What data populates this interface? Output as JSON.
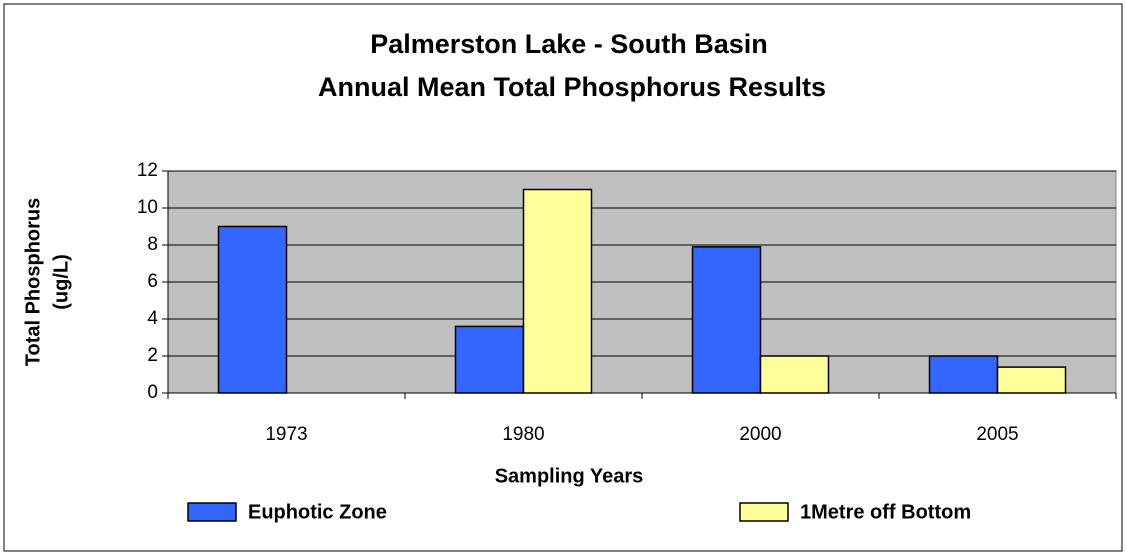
{
  "chart_data": {
    "type": "bar",
    "title": "Palmerston Lake - South Basin",
    "subtitle": "Annual Mean Total Phosphorus Results",
    "x_label": "Sampling Years",
    "y_label": "Total Phosphorus",
    "y_label_unit": "(ug/L)",
    "categories": [
      "1973",
      "1980",
      "2000",
      "2005"
    ],
    "series": [
      {
        "name": "Euphotic Zone",
        "color": "#3366ff",
        "values": [
          9,
          3.6,
          7.9,
          2
        ]
      },
      {
        "name": "1Metre off Bottom",
        "color": "#ffff99",
        "values": [
          null,
          11,
          2,
          1.4
        ]
      }
    ],
    "ylim": [
      0,
      12
    ],
    "yticks": [
      0,
      2,
      4,
      6,
      8,
      10,
      12
    ],
    "grid": true,
    "plot_background": "#c0c0c0",
    "legend": "bottom"
  }
}
